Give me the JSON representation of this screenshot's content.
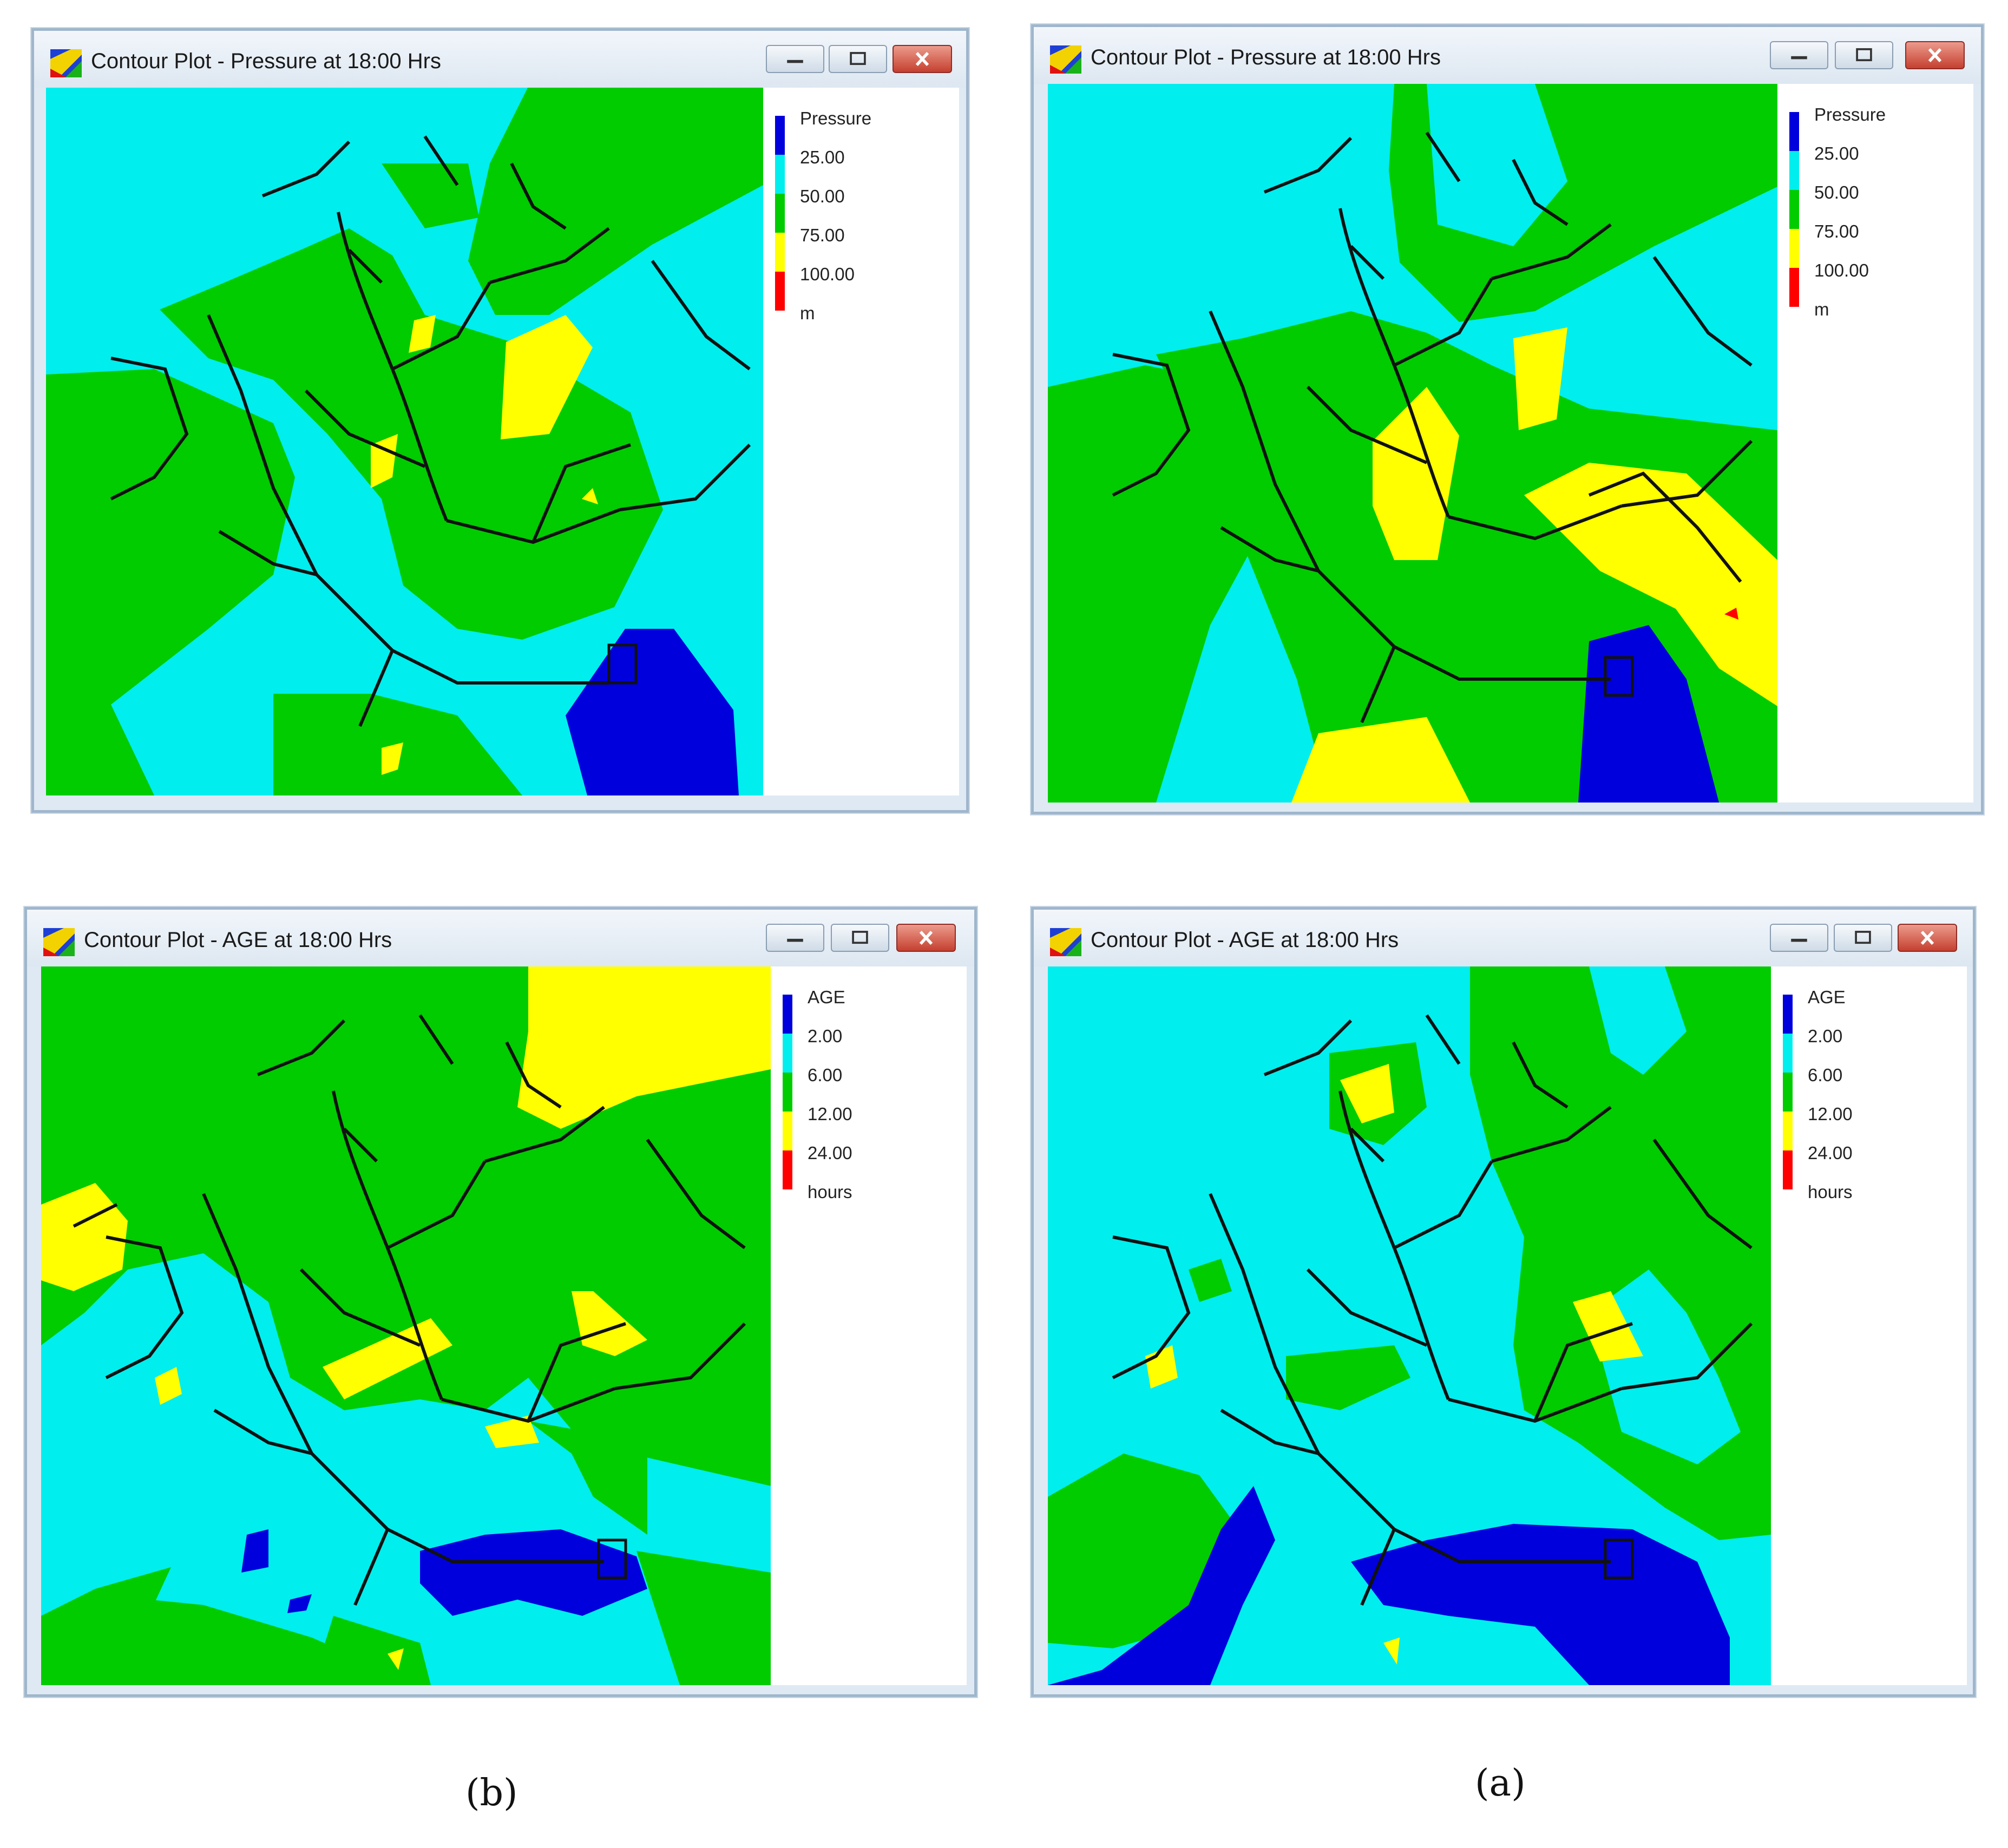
{
  "windows": [
    {
      "id": "pressure-b",
      "title": "Contour Plot - Pressure at 18:00 Hrs",
      "legend": {
        "title": "Pressure",
        "values": [
          "25.00",
          "50.00",
          "75.00",
          "100.00"
        ],
        "unit": "m"
      }
    },
    {
      "id": "pressure-a",
      "title": "Contour Plot - Pressure at 18:00 Hrs",
      "legend": {
        "title": "Pressure",
        "values": [
          "25.00",
          "50.00",
          "75.00",
          "100.00"
        ],
        "unit": "m"
      }
    },
    {
      "id": "age-b",
      "title": "Contour Plot - AGE at 18:00 Hrs",
      "legend": {
        "title": "AGE",
        "values": [
          "2.00",
          "6.00",
          "12.00",
          "24.00"
        ],
        "unit": "hours"
      }
    },
    {
      "id": "age-a",
      "title": "Contour Plot - AGE at 18:00 Hrs",
      "legend": {
        "title": "AGE",
        "values": [
          "2.00",
          "6.00",
          "12.00",
          "24.00"
        ],
        "unit": "hours"
      }
    }
  ],
  "legend_colors": [
    "#0000dd",
    "#00eeee",
    "#00cc00",
    "#ffff00",
    "#ff0000"
  ],
  "captions": {
    "left": "(b)",
    "right": "(a)"
  }
}
